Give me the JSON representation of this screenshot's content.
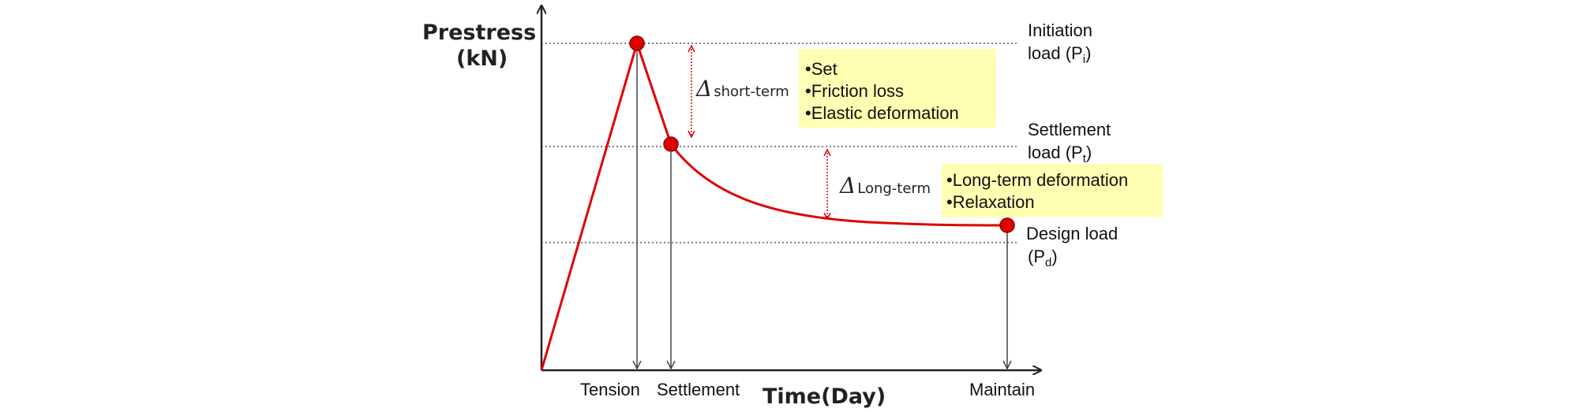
{
  "axes": {
    "y_title_line1": "Prestress",
    "y_title_line2": "(kN)",
    "x_title": "Time(Day)"
  },
  "loads": {
    "initiation": {
      "line1": "Initiation",
      "line2_prefix": "load (P",
      "line2_sub": "i",
      "line2_suffix": ")"
    },
    "settlement": {
      "line1": "Settlement",
      "line2_prefix": "load (P",
      "line2_sub": "t",
      "line2_suffix": ")"
    },
    "design": {
      "line1": "Design load",
      "line2_prefix": "(P",
      "line2_sub": "d",
      "line2_suffix": ")"
    }
  },
  "x_labels": {
    "tension": "Tension",
    "settlement": "Settlement",
    "maintain": "Maintain"
  },
  "deltas": {
    "short_symbol": "Δ",
    "short_label": "short-term",
    "long_symbol": "Δ",
    "long_label": "Long-term"
  },
  "boxes": {
    "short_term": [
      "•Set",
      "•Friction loss",
      "•Elastic deformation"
    ],
    "long_term": [
      "•Long-term deformation",
      "•Relaxation"
    ]
  },
  "colors": {
    "curve": "#e00000",
    "point_fill": "#e00000",
    "note_box": "#ffffb3",
    "axis": "#222222",
    "dotted_line": "#555555",
    "delta_arrow": "#e00000"
  }
}
